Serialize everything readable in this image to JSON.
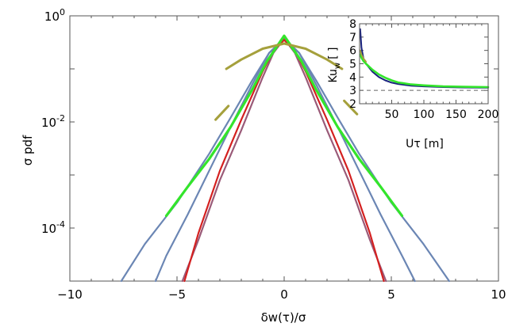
{
  "chart_data": [
    {
      "type": "line",
      "role": "main",
      "xlabel": "δw(τ)/σ",
      "ylabel": "σ pdf",
      "xlim": [
        -10,
        10
      ],
      "ylim_log10": [
        -5,
        0
      ],
      "y_scale": "log",
      "xticks": [
        -10,
        -5,
        0,
        5,
        10
      ],
      "xtick_labels": [
        "−10",
        "−5",
        "0",
        "5",
        "10"
      ],
      "yticks_log10": [
        0,
        -2,
        -4
      ],
      "ytick_labels": [
        {
          "base": "10",
          "exp": "0"
        },
        {
          "base": "10",
          "exp": "-2"
        },
        {
          "base": "10",
          "exp": "-4"
        }
      ],
      "grid": false,
      "series": [
        {
          "color": "#6b86b4",
          "points": [
            [
              -7.6,
              1e-05
            ],
            [
              -6.5,
              5e-05
            ],
            [
              -5,
              0.0003
            ],
            [
              -3.5,
              0.0025
            ],
            [
              -2.5,
              0.012
            ],
            [
              -1.5,
              0.06
            ],
            [
              -0.7,
              0.2
            ],
            [
              0,
              0.36
            ],
            [
              0.7,
              0.2
            ],
            [
              1.5,
              0.06
            ],
            [
              2.5,
              0.012
            ],
            [
              3.5,
              0.0025
            ],
            [
              5,
              0.0003
            ],
            [
              6.5,
              5e-05
            ],
            [
              7.7,
              1e-05
            ]
          ]
        },
        {
          "color": "#6b86b4",
          "points": [
            [
              -6.0,
              1e-05
            ],
            [
              -5.5,
              3e-05
            ],
            [
              -4.5,
              0.00018
            ],
            [
              -3.5,
              0.0012
            ],
            [
              -2.5,
              0.008
            ],
            [
              -1.5,
              0.05
            ],
            [
              -0.7,
              0.2
            ],
            [
              0,
              0.38
            ],
            [
              0.7,
              0.2
            ],
            [
              1.5,
              0.05
            ],
            [
              2.5,
              0.008
            ],
            [
              3.5,
              0.0012
            ],
            [
              4.5,
              0.00018
            ],
            [
              5.5,
              3e-05
            ],
            [
              6.1,
              1e-05
            ]
          ]
        },
        {
          "color": "#9a5a78",
          "points": [
            [
              -4.75,
              1e-05
            ],
            [
              -4,
              6e-05
            ],
            [
              -3,
              0.0008
            ],
            [
              -2,
              0.007
            ],
            [
              -1,
              0.07
            ],
            [
              -0.5,
              0.2
            ],
            [
              0,
              0.37
            ],
            [
              0.5,
              0.2
            ],
            [
              1,
              0.07
            ],
            [
              2,
              0.007
            ],
            [
              3,
              0.0008
            ],
            [
              4,
              6e-05
            ],
            [
              4.75,
              1e-05
            ]
          ]
        },
        {
          "color": "#d42020",
          "points": [
            [
              -4.65,
              1e-05
            ],
            [
              -4,
              8e-05
            ],
            [
              -3,
              0.0012
            ],
            [
              -2,
              0.011
            ],
            [
              -1,
              0.09
            ],
            [
              -0.5,
              0.22
            ],
            [
              0,
              0.35
            ],
            [
              0.5,
              0.22
            ],
            [
              1,
              0.09
            ],
            [
              2,
              0.011
            ],
            [
              3,
              0.0012
            ],
            [
              4,
              8e-05
            ],
            [
              4.65,
              1e-05
            ]
          ]
        },
        {
          "color": "#33e52b",
          "points": [
            [
              -5.5,
              0.00017
            ],
            [
              -4.5,
              0.0006
            ],
            [
              -3.5,
              0.002
            ],
            [
              -2.5,
              0.008
            ],
            [
              -1.5,
              0.04
            ],
            [
              -0.8,
              0.14
            ],
            [
              0,
              0.42
            ],
            [
              0.8,
              0.14
            ],
            [
              1.5,
              0.04
            ],
            [
              2.5,
              0.008
            ],
            [
              3.5,
              0.002
            ],
            [
              4.5,
              0.0006
            ],
            [
              5.5,
              0.00017
            ]
          ]
        },
        {
          "color": "#a5a03c",
          "points": [
            [
              -2.7,
              0.1
            ],
            [
              -2,
              0.15
            ],
            [
              -1,
              0.24
            ],
            [
              0,
              0.3
            ],
            [
              1,
              0.24
            ],
            [
              2,
              0.15
            ],
            [
              2.7,
              0.1
            ]
          ]
        },
        {
          "color": "#a5a03c",
          "points": [
            [
              -3.2,
              0.011
            ],
            [
              -2.6,
              0.02
            ]
          ]
        },
        {
          "color": "#a5a03c",
          "points": [
            [
              3.4,
              0.014
            ],
            [
              2.8,
              0.025
            ]
          ]
        }
      ]
    },
    {
      "type": "line",
      "role": "inset",
      "xlabel": "Uτ [m]",
      "ylabel_main": "Ku",
      "ylabel_sub": "w",
      "ylabel_unit": "[ ]",
      "xlim": [
        0,
        200
      ],
      "ylim": [
        2,
        8
      ],
      "xticks": [
        50,
        100,
        150,
        200
      ],
      "xtick_labels": [
        "50",
        "100",
        "150",
        "200"
      ],
      "yticks": [
        2,
        3,
        4,
        5,
        6,
        7,
        8
      ],
      "ytick_labels": [
        "2",
        "3",
        "4",
        "5",
        "6",
        "7",
        "8"
      ],
      "reference_line_y": 3,
      "series": [
        {
          "color": "#1a237e",
          "points": [
            [
              1,
              7.6
            ],
            [
              3,
              6.2
            ],
            [
              6,
              5.4
            ],
            [
              10,
              5.0
            ],
            [
              20,
              4.4
            ],
            [
              30,
              4.0
            ],
            [
              40,
              3.75
            ],
            [
              50,
              3.58
            ],
            [
              60,
              3.48
            ],
            [
              80,
              3.35
            ],
            [
              100,
              3.3
            ],
            [
              130,
              3.25
            ],
            [
              160,
              3.22
            ],
            [
              200,
              3.2
            ]
          ]
        },
        {
          "color": "#33e52b",
          "points": [
            [
              1,
              5.7
            ],
            [
              3,
              5.45
            ],
            [
              6,
              5.2
            ],
            [
              10,
              5.0
            ],
            [
              20,
              4.55
            ],
            [
              30,
              4.2
            ],
            [
              40,
              3.95
            ],
            [
              50,
              3.75
            ],
            [
              60,
              3.6
            ],
            [
              80,
              3.45
            ],
            [
              100,
              3.38
            ],
            [
              130,
              3.3
            ],
            [
              160,
              3.27
            ],
            [
              200,
              3.25
            ]
          ]
        },
        {
          "color": "#a5a03c",
          "points": [
            [
              1,
              6.0
            ],
            [
              3,
              5.7
            ],
            [
              6,
              5.4
            ],
            [
              10,
              5.15
            ]
          ]
        }
      ]
    }
  ]
}
